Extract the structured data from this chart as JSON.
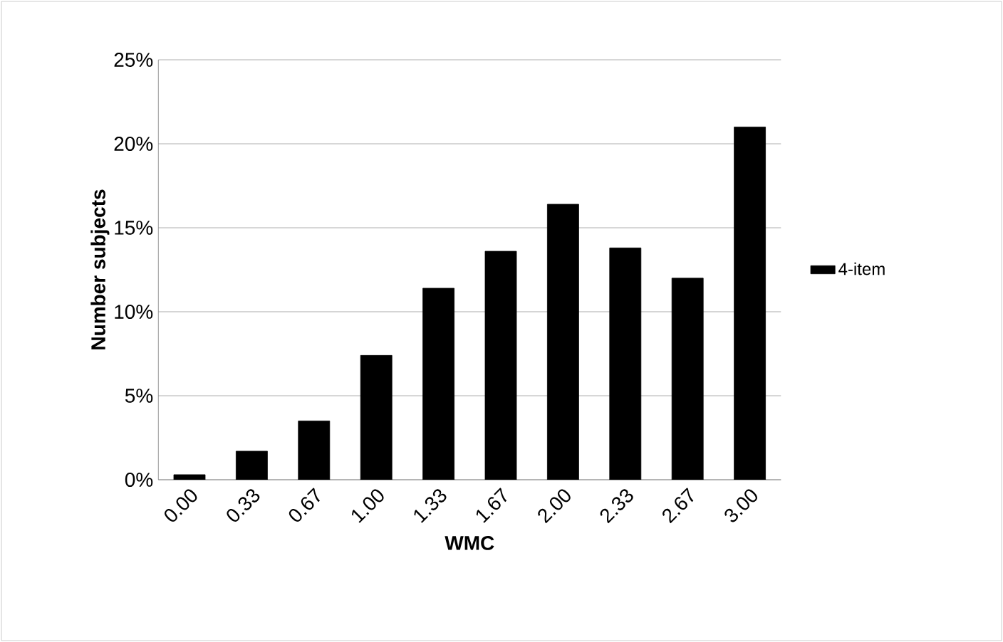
{
  "chart_data": {
    "type": "bar",
    "xlabel": "WMC",
    "ylabel": "Number subjects",
    "categories": [
      "0.00",
      "0.33",
      "0.67",
      "1.00",
      "1.33",
      "1.67",
      "2.00",
      "2.33",
      "2.67",
      "3.00"
    ],
    "series": [
      {
        "name": "4-item",
        "color": "#000000",
        "values": [
          0.3,
          1.7,
          3.5,
          7.4,
          11.4,
          13.6,
          16.4,
          13.8,
          12.0,
          21.0
        ]
      }
    ],
    "ylim": [
      0,
      25
    ],
    "yticks": [
      {
        "value": 0,
        "label": "0%"
      },
      {
        "value": 5,
        "label": "5%"
      },
      {
        "value": 10,
        "label": "10%"
      },
      {
        "value": 15,
        "label": "15%"
      },
      {
        "value": 20,
        "label": "20%"
      },
      {
        "value": 25,
        "label": "25%"
      }
    ],
    "grid": "y",
    "legend": "right"
  }
}
